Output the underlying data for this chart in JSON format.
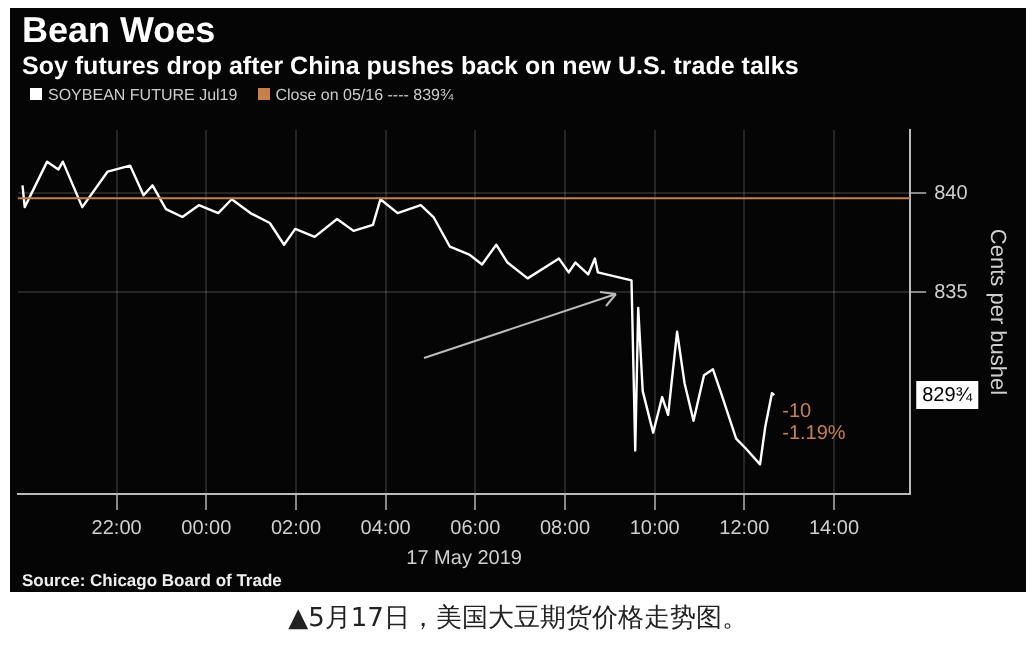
{
  "chart_data": {
    "type": "line",
    "title": "Bean Woes",
    "subtitle": "Soy futures drop after China pushes back on new U.S. trade talks",
    "xlabel": "17 May 2019",
    "ylabel": "Cents per bushel",
    "xlim": [
      "2019-05-16T19:48",
      "2019-05-17T15:42"
    ],
    "ylim": [
      824.8,
      843.2
    ],
    "xticks": [
      {
        "value": "2019-05-16T22:00",
        "label": "22:00"
      },
      {
        "value": "2019-05-17T00:00",
        "label": "00:00"
      },
      {
        "value": "2019-05-17T02:00",
        "label": "02:00"
      },
      {
        "value": "2019-05-17T04:00",
        "label": "04:00"
      },
      {
        "value": "2019-05-17T06:00",
        "label": "06:00"
      },
      {
        "value": "2019-05-17T08:00",
        "label": "08:00"
      },
      {
        "value": "2019-05-17T10:00",
        "label": "10:00"
      },
      {
        "value": "2019-05-17T12:00",
        "label": "12:00"
      },
      {
        "value": "2019-05-17T14:00",
        "label": "14:00"
      }
    ],
    "yticks": [
      835,
      840
    ],
    "grid": true,
    "legend": "top left",
    "series": [
      {
        "name": "SOYBEAN FUTURE Jul19",
        "color": "#ffffff",
        "x": [
          "2019-05-16T19:54",
          "2019-05-16T19:57",
          "2019-05-16T20:27",
          "2019-05-16T20:42",
          "2019-05-16T20:48",
          "2019-05-16T21:14",
          "2019-05-16T21:48",
          "2019-05-16T22:18",
          "2019-05-16T22:36",
          "2019-05-16T22:48",
          "2019-05-16T23:06",
          "2019-05-16T23:28",
          "2019-05-16T23:50",
          "2019-05-17T00:16",
          "2019-05-17T00:34",
          "2019-05-17T00:59",
          "2019-05-17T01:25",
          "2019-05-17T01:44",
          "2019-05-17T01:59",
          "2019-05-17T02:25",
          "2019-05-17T02:55",
          "2019-05-17T03:17",
          "2019-05-17T03:43",
          "2019-05-17T03:53",
          "2019-05-17T04:16",
          "2019-05-17T04:47",
          "2019-05-17T05:04",
          "2019-05-17T05:26",
          "2019-05-17T05:52",
          "2019-05-17T06:09",
          "2019-05-17T06:28",
          "2019-05-17T06:43",
          "2019-05-17T07:10",
          "2019-05-17T07:52",
          "2019-05-17T08:05",
          "2019-05-17T08:14",
          "2019-05-17T08:31",
          "2019-05-17T08:40",
          "2019-05-17T08:44",
          "2019-05-17T09:29",
          "2019-05-17T09:34",
          "2019-05-17T09:38",
          "2019-05-17T09:44",
          "2019-05-17T09:58",
          "2019-05-17T10:10",
          "2019-05-17T10:18",
          "2019-05-17T10:30",
          "2019-05-17T10:40",
          "2019-05-17T10:52",
          "2019-05-17T11:06",
          "2019-05-17T11:18",
          "2019-05-17T11:28",
          "2019-05-17T11:49",
          "2019-05-17T12:02",
          "2019-05-17T12:21",
          "2019-05-17T12:28",
          "2019-05-17T12:37",
          "2019-05-17T12:40"
        ],
        "values": [
          840.4,
          839.3,
          841.6,
          841.2,
          841.6,
          839.3,
          841.1,
          841.4,
          839.9,
          840.4,
          839.2,
          838.8,
          839.4,
          839.0,
          839.7,
          839.0,
          838.5,
          837.4,
          838.2,
          837.8,
          838.7,
          838.1,
          838.4,
          839.7,
          839.0,
          839.4,
          838.8,
          837.3,
          836.9,
          836.4,
          837.4,
          836.5,
          835.7,
          836.7,
          836.0,
          836.5,
          835.9,
          836.7,
          836.0,
          835.6,
          827.0,
          834.2,
          830.0,
          827.9,
          829.7,
          828.8,
          833.0,
          830.4,
          828.5,
          830.8,
          831.1,
          830.0,
          827.6,
          827.1,
          826.3,
          828.2,
          829.9,
          829.8
        ]
      }
    ],
    "ref_lines": [
      {
        "axis": "y",
        "value": 839.75,
        "label": "Close on 05/16 ---- 839¾",
        "color": "#c8804a"
      }
    ],
    "annotations": [
      "829¾",
      "-10",
      "-1.19%",
      "Source: Chicago Board of Trade",
      "▲5月17日，美国大豆期货价格走势图。"
    ]
  }
}
